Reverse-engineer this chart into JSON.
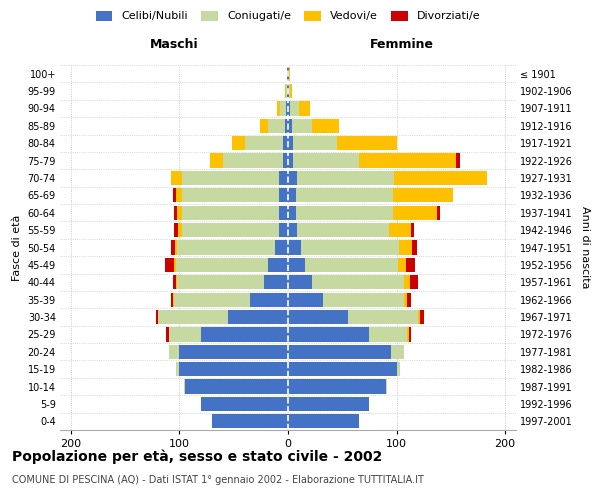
{
  "age_groups": [
    "0-4",
    "5-9",
    "10-14",
    "15-19",
    "20-24",
    "25-29",
    "30-34",
    "35-39",
    "40-44",
    "45-49",
    "50-54",
    "55-59",
    "60-64",
    "65-69",
    "70-74",
    "75-79",
    "80-84",
    "85-89",
    "90-94",
    "95-99",
    "100+"
  ],
  "birth_years": [
    "1997-2001",
    "1992-1996",
    "1987-1991",
    "1982-1986",
    "1977-1981",
    "1972-1976",
    "1967-1971",
    "1962-1966",
    "1957-1961",
    "1952-1956",
    "1947-1951",
    "1942-1946",
    "1937-1941",
    "1932-1936",
    "1927-1931",
    "1922-1926",
    "1917-1921",
    "1912-1916",
    "1907-1911",
    "1902-1906",
    "≤ 1901"
  ],
  "maschi_celibi": [
    70,
    80,
    95,
    100,
    100,
    80,
    55,
    35,
    22,
    18,
    12,
    8,
    8,
    8,
    8,
    5,
    5,
    3,
    2,
    1,
    1
  ],
  "maschi_coniugati": [
    0,
    0,
    1,
    3,
    10,
    30,
    65,
    70,
    80,
    85,
    90,
    90,
    90,
    90,
    90,
    55,
    35,
    15,
    5,
    1,
    0
  ],
  "maschi_vedovi": [
    0,
    0,
    0,
    0,
    0,
    0,
    0,
    1,
    1,
    2,
    2,
    3,
    4,
    5,
    10,
    12,
    12,
    8,
    3,
    1,
    0
  ],
  "maschi_divorziati": [
    0,
    0,
    0,
    0,
    0,
    2,
    2,
    2,
    3,
    8,
    4,
    4,
    3,
    3,
    0,
    0,
    0,
    0,
    0,
    0,
    0
  ],
  "femmine_celibi": [
    65,
    75,
    90,
    100,
    95,
    75,
    55,
    32,
    22,
    16,
    12,
    8,
    7,
    7,
    8,
    5,
    5,
    4,
    2,
    1,
    1
  ],
  "femmine_coniugati": [
    0,
    0,
    1,
    3,
    12,
    35,
    65,
    75,
    85,
    85,
    90,
    85,
    90,
    90,
    90,
    60,
    40,
    18,
    8,
    1,
    0
  ],
  "femmine_vedovi": [
    0,
    0,
    0,
    0,
    0,
    1,
    2,
    3,
    5,
    8,
    12,
    20,
    40,
    55,
    85,
    90,
    55,
    25,
    10,
    2,
    1
  ],
  "femmine_divorziati": [
    0,
    0,
    0,
    0,
    0,
    2,
    3,
    3,
    8,
    8,
    5,
    3,
    3,
    0,
    0,
    3,
    0,
    0,
    0,
    0,
    0
  ],
  "colors": {
    "celibi": "#4472C4",
    "coniugati": "#c5d9a0",
    "vedovi": "#ffc000",
    "divorziati": "#cc0000"
  },
  "title": "Popolazione per età, sesso e stato civile - 2002",
  "subtitle": "COMUNE DI PESCINA (AQ) - Dati ISTAT 1° gennaio 2002 - Elaborazione TUTTITALIA.IT",
  "ylabel": "Fasce di età",
  "ylabel2": "Anni di nascita",
  "xlabel_left": "Maschi",
  "xlabel_right": "Femmine",
  "xlim": 210,
  "background_color": "#ffffff",
  "grid_color": "#bbbbbb"
}
